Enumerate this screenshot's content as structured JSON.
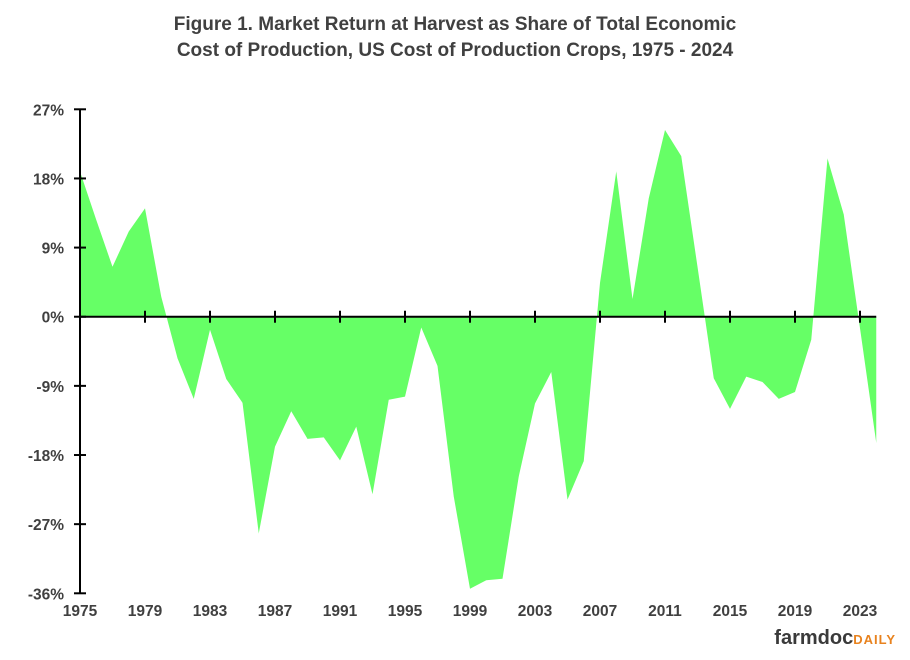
{
  "chart_data": {
    "type": "area",
    "title_line1": "Figure 1.  Market Return at Harvest as Share of Total Economic",
    "title_line2": "Cost of Production,  US Cost of Production  Crops,  1975 - 2024",
    "xlabel": "",
    "ylabel": "",
    "ylim": [
      -36,
      27
    ],
    "yticks": [
      27,
      18,
      9,
      0,
      -9,
      -18,
      -27,
      -36
    ],
    "ytick_labels": [
      "27%",
      "18%",
      "9%",
      "0%",
      "-9%",
      "-18%",
      "-27%",
      "-36%"
    ],
    "xticks": [
      1975,
      1979,
      1983,
      1987,
      1991,
      1995,
      1999,
      2003,
      2007,
      2011,
      2015,
      2019,
      2023
    ],
    "xtick_labels": [
      "1975",
      "1979",
      "1983",
      "1987",
      "1991",
      "1995",
      "1999",
      "2003",
      "2007",
      "2011",
      "2015",
      "2019",
      "2023"
    ],
    "fill_color": "#66ff66",
    "grid": false,
    "series": [
      {
        "name": "Market return as share of total economic cost",
        "x": [
          1975,
          1976,
          1977,
          1978,
          1979,
          1980,
          1981,
          1982,
          1983,
          1984,
          1985,
          1986,
          1987,
          1988,
          1989,
          1990,
          1991,
          1992,
          1993,
          1994,
          1995,
          1996,
          1997,
          1998,
          1999,
          2000,
          2001,
          2002,
          2003,
          2004,
          2005,
          2006,
          2007,
          2008,
          2009,
          2010,
          2011,
          2012,
          2013,
          2014,
          2015,
          2016,
          2017,
          2018,
          2019,
          2020,
          2021,
          2022,
          2023,
          2024
        ],
        "values": [
          18.9,
          12.6,
          6.5,
          11.1,
          14.1,
          2.6,
          -5.4,
          -10.7,
          -1.7,
          -8.1,
          -11.2,
          -28.2,
          -16.9,
          -12.3,
          -15.9,
          -15.7,
          -18.7,
          -14.3,
          -23.1,
          -10.8,
          -10.4,
          -1.4,
          -6.4,
          -23.4,
          -35.4,
          -34.3,
          -34.1,
          -20.8,
          -11.3,
          -7.2,
          -23.8,
          -18.8,
          4.4,
          18.9,
          2.3,
          15.4,
          24.3,
          20.9,
          6.5,
          -8.0,
          -12.0,
          -7.8,
          -8.5,
          -10.7,
          -9.8,
          -3.0,
          20.6,
          13.3,
          -1.5,
          -16.4
        ]
      }
    ]
  },
  "logo": {
    "part1": "farmdoc",
    "part2": "DAILY"
  }
}
